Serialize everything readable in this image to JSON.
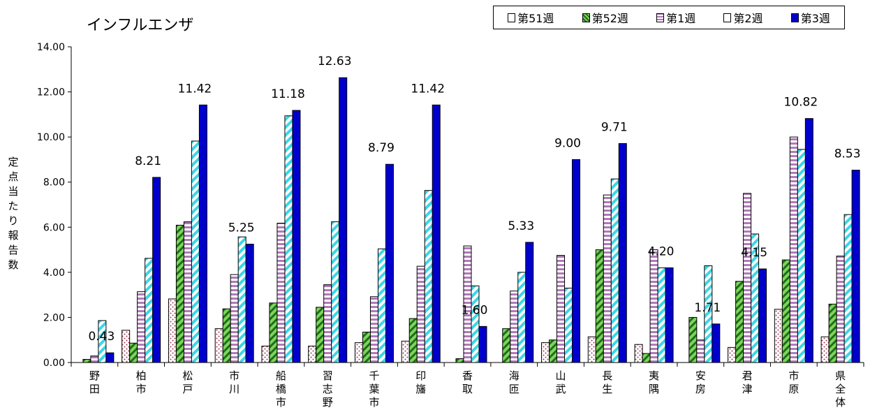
{
  "chart_data": {
    "type": "bar",
    "title": "インフルエンザ",
    "ylabel": "定点当たり報告数",
    "xlabel": "",
    "ylim": [
      0,
      14
    ],
    "yticks": [
      "0.00",
      "2.00",
      "4.00",
      "6.00",
      "8.00",
      "10.00",
      "12.00",
      "14.00"
    ],
    "legend_position": "top-right",
    "grid": false,
    "categories": [
      "野田",
      "柏市",
      "松戸",
      "市川",
      "船橋市",
      "習志野",
      "千葉市",
      "印旛",
      "香取",
      "海匝",
      "山武",
      "長生",
      "夷隅",
      "安房",
      "君津",
      "市原",
      "県全体"
    ],
    "series": [
      {
        "name": "第51週",
        "values": [
          0.0,
          1.43,
          2.82,
          1.5,
          0.73,
          0.73,
          0.88,
          0.95,
          0.0,
          0.0,
          0.88,
          1.14,
          0.8,
          0.0,
          0.67,
          2.36,
          1.14
        ]
      },
      {
        "name": "第52週",
        "values": [
          0.14,
          0.86,
          6.09,
          2.38,
          2.64,
          2.45,
          1.35,
          1.95,
          0.17,
          1.5,
          1.0,
          5.0,
          0.4,
          2.0,
          3.6,
          4.55,
          2.59
        ]
      },
      {
        "name": "第1週",
        "values": [
          0.29,
          3.14,
          6.24,
          3.9,
          6.18,
          3.45,
          2.92,
          4.27,
          5.17,
          3.17,
          4.75,
          7.43,
          5.0,
          1.0,
          7.5,
          10.0,
          4.72
        ]
      },
      {
        "name": "第2週",
        "values": [
          1.86,
          4.62,
          9.82,
          5.57,
          10.94,
          6.24,
          5.04,
          7.63,
          3.4,
          4.0,
          3.3,
          8.14,
          4.2,
          4.29,
          5.7,
          9.45,
          6.56
        ]
      },
      {
        "name": "第3週",
        "values": [
          0.43,
          8.21,
          11.42,
          5.25,
          11.18,
          12.63,
          8.79,
          11.42,
          1.6,
          5.33,
          9.0,
          9.71,
          4.2,
          1.71,
          4.15,
          10.82,
          8.53
        ]
      }
    ],
    "data_labels": [
      "0.43",
      "8.21",
      "11.42",
      "5.25",
      "11.18",
      "12.63",
      "8.79",
      "11.42",
      "1.60",
      "5.33",
      "9.00",
      "9.71",
      "4.20",
      "1.71",
      "4.15",
      "10.82",
      "8.53"
    ],
    "colors": {
      "s51_fill": "#ffffff",
      "s51_dots": "#9a3b55",
      "s52_fill": "#7fd45a",
      "s52_stripe": "#1d6d1d",
      "s1_fill": "#ffffff",
      "s1_stripe": "#b07ab8",
      "s2_fill": "#ffffff",
      "s2_stripe": "#3cd6e6",
      "s3_fill": "#0000cc"
    }
  }
}
